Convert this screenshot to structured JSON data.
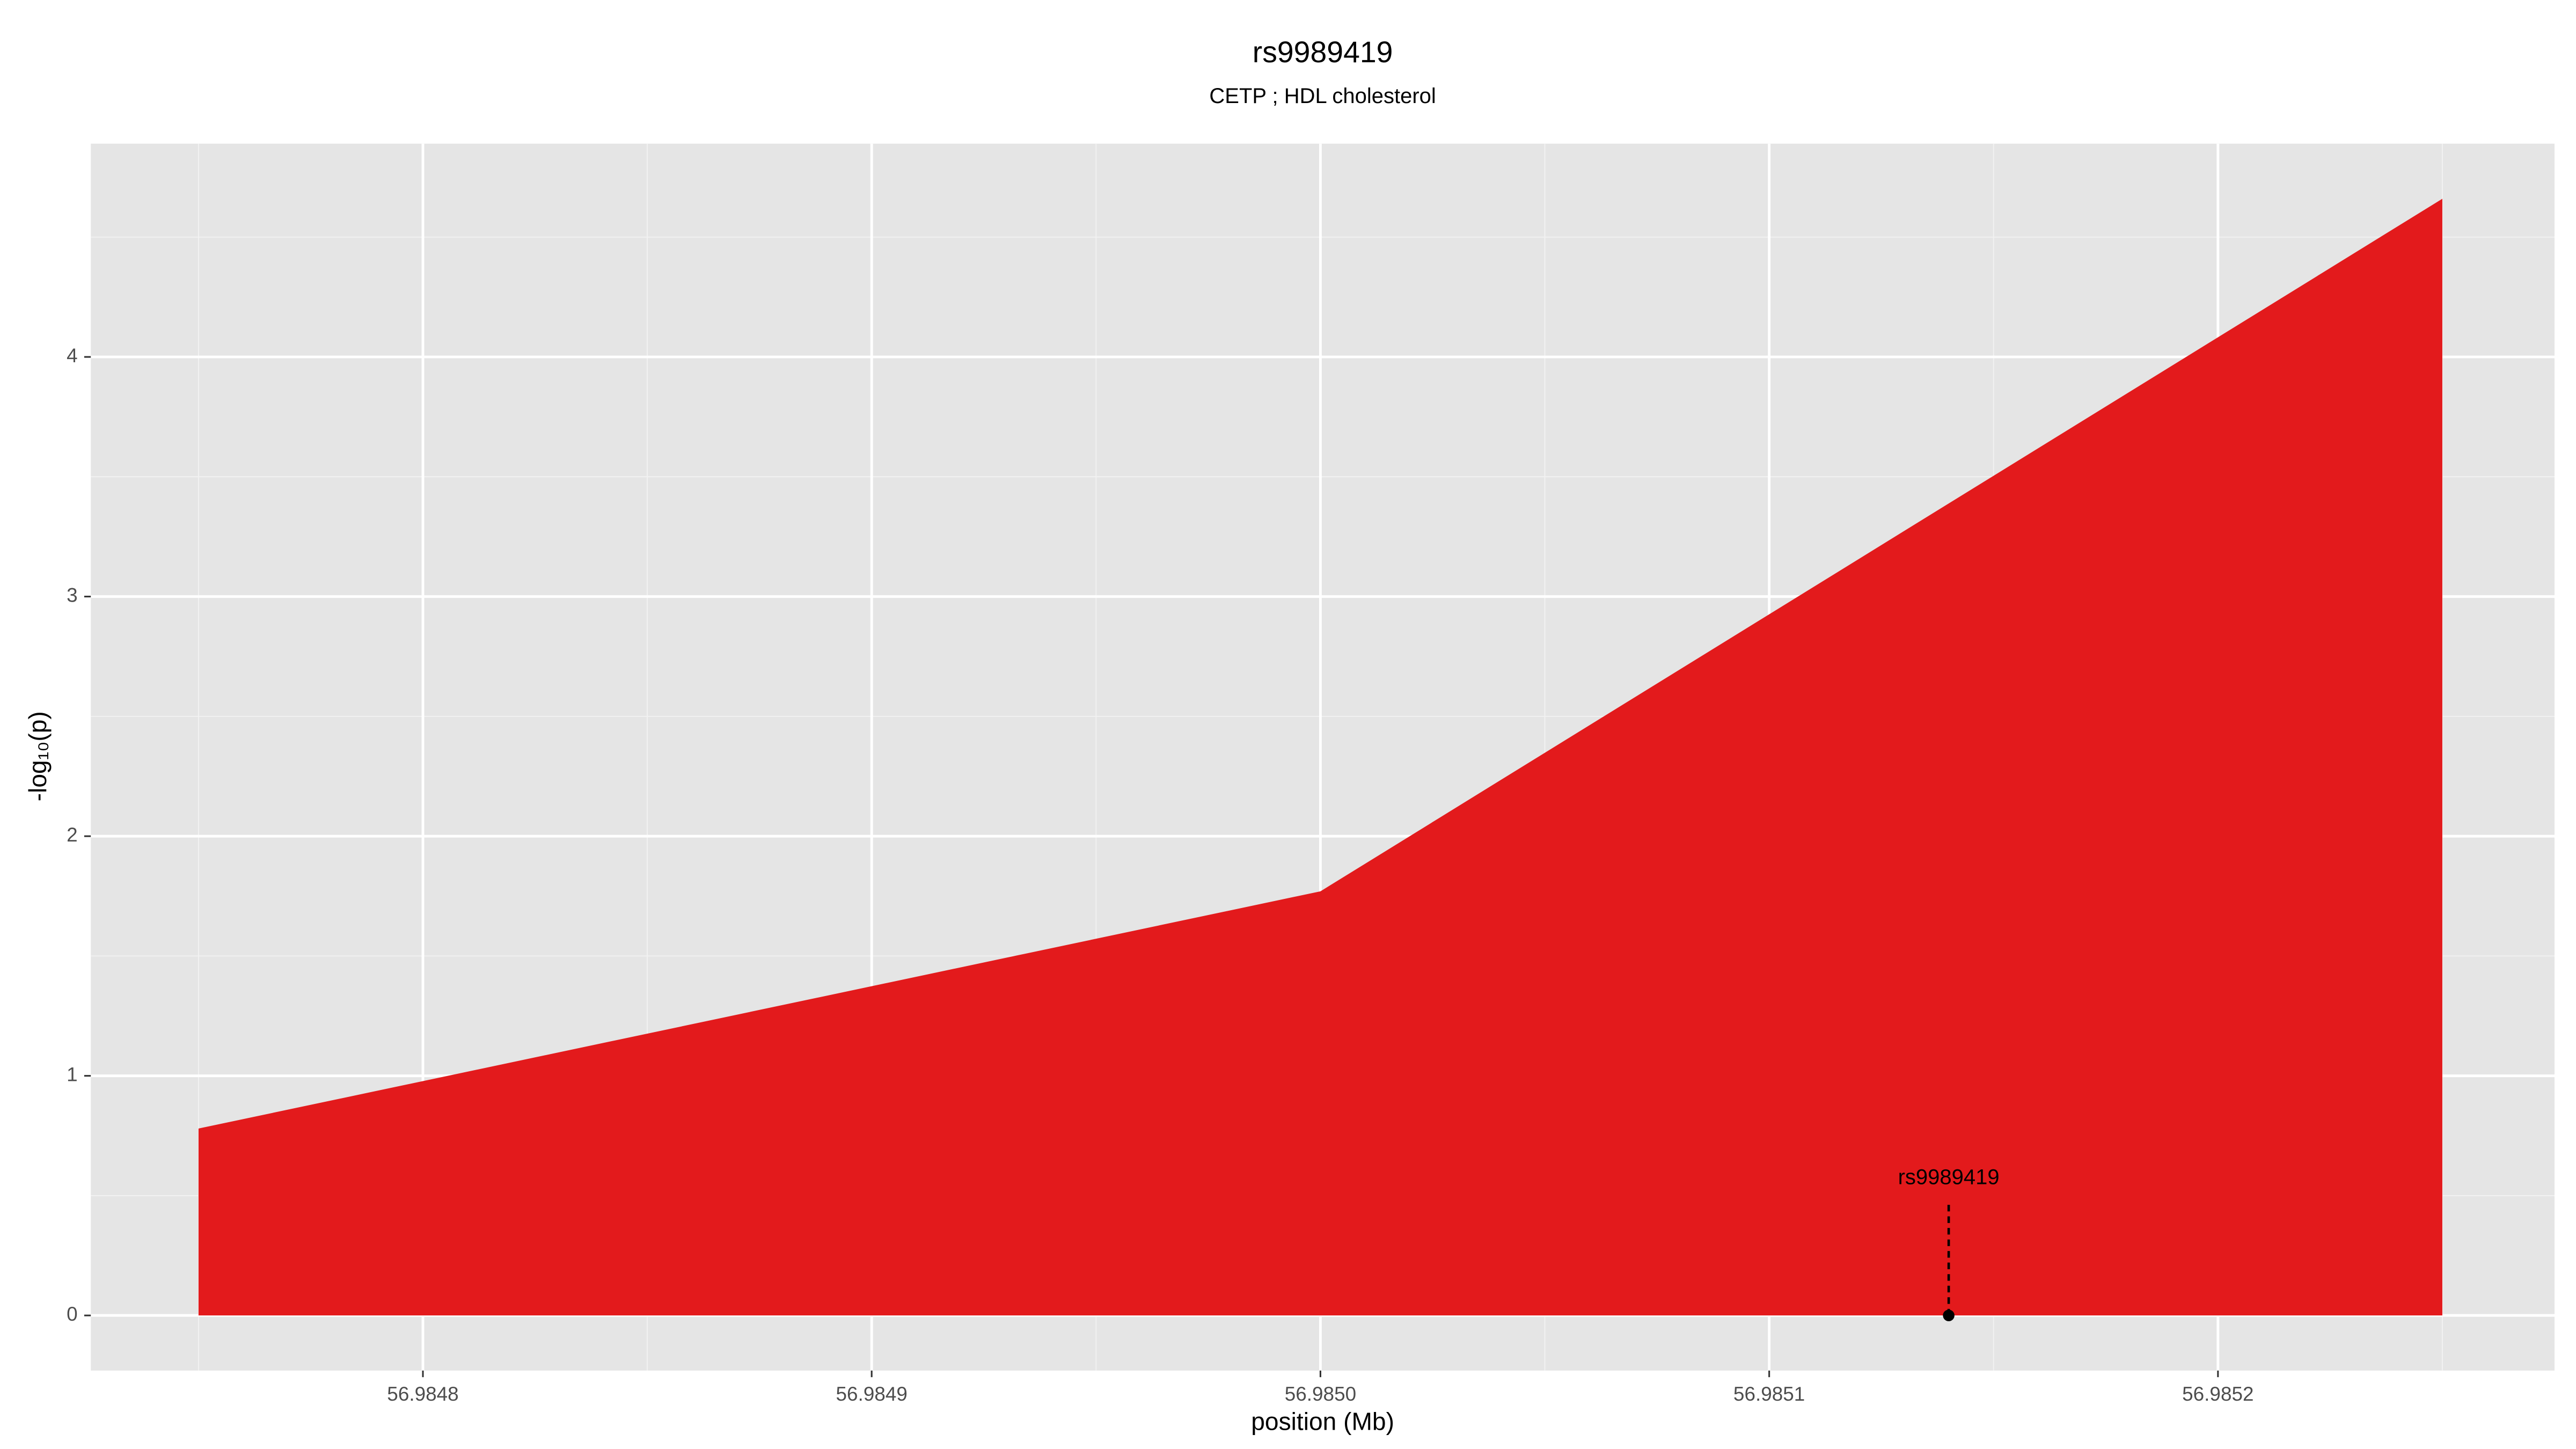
{
  "chart_data": {
    "type": "area",
    "title": "rs9989419",
    "subtitle": "CETP ; HDL cholesterol",
    "x_label": "position (Mb)",
    "y_label": "-log₁₀(p)",
    "x": [
      56.98475,
      56.985,
      56.98525
    ],
    "values": [
      0.78,
      1.77,
      4.66
    ],
    "color": "#e31a1c",
    "xlim": [
      56.984726,
      56.985275
    ],
    "ylim": [
      -0.23,
      4.89
    ],
    "xticks": [
      56.9848,
      56.9849,
      {
        "value": 56.985,
        "label": "56.9850"
      },
      56.9851,
      56.9852
    ],
    "yticks": [
      0,
      1,
      2,
      3,
      4
    ],
    "grid": true,
    "annotations": [
      {
        "label": "rs9989419",
        "x": 56.98514,
        "y": 0
      }
    ]
  }
}
